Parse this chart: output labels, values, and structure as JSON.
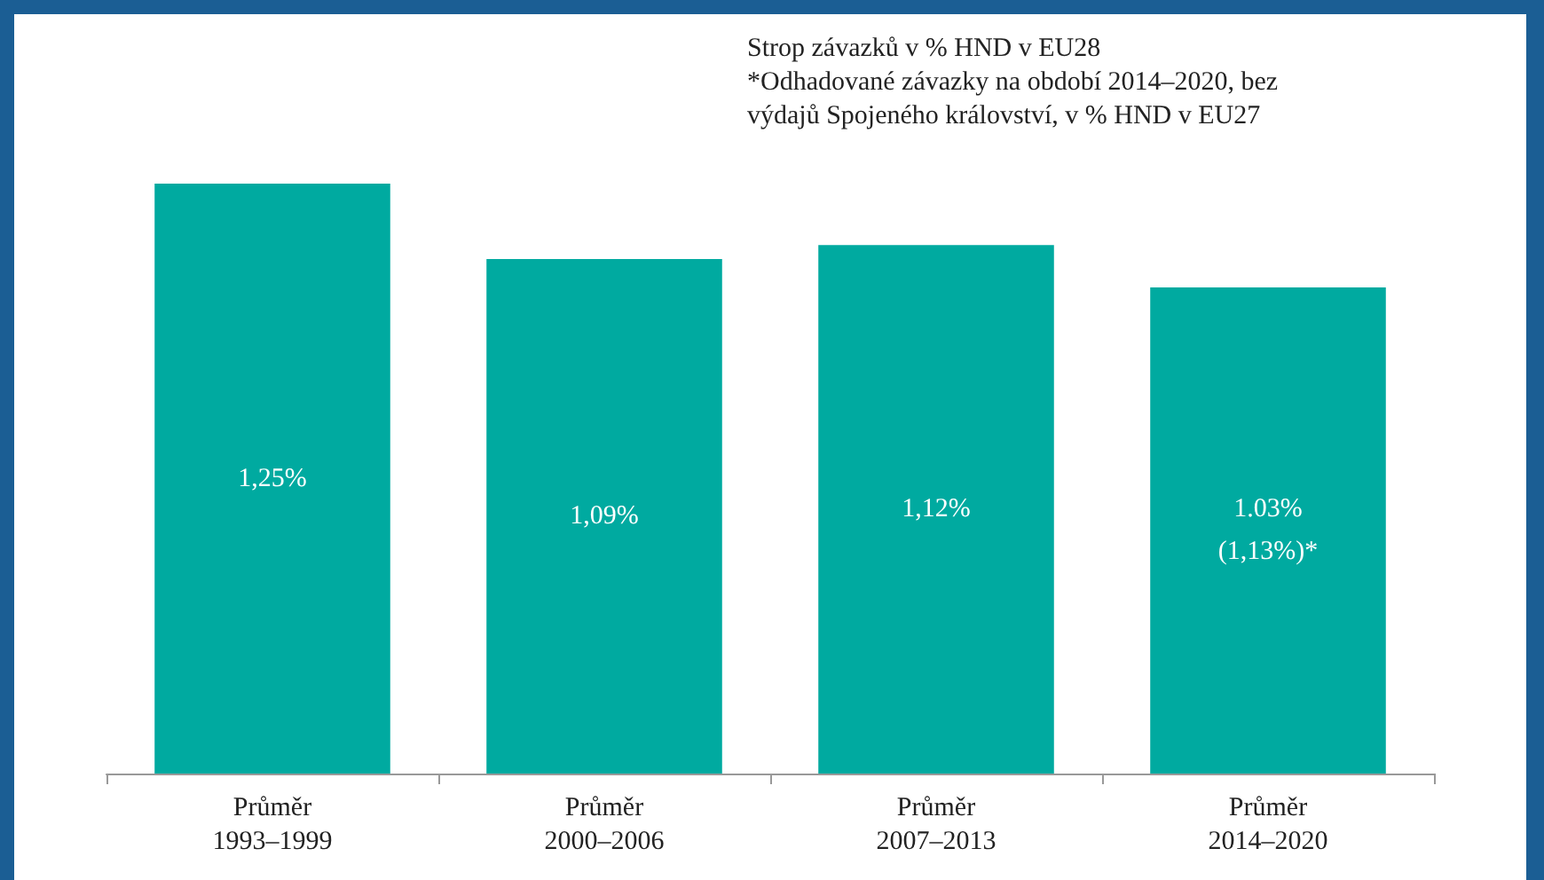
{
  "chart_data": {
    "type": "bar",
    "categories": [
      "Průměr\n1993–1999",
      "Průměr\n2000–2006",
      "Průměr\n2007–2013",
      "Průměr\n2014–2020"
    ],
    "values": [
      1.25,
      1.09,
      1.12,
      1.03
    ],
    "value_labels": [
      "1,25%",
      "1,09%",
      "1,12%",
      "1.03%\n(1,13%)*"
    ],
    "color": "#00aaa0",
    "annotations": [
      "Strop závazků v % HND v EU28",
      "*Odhadované závazky na období 2014–2020, bez\nvýdajů Spojeného království, v % HND v EU27"
    ],
    "grid": false
  }
}
